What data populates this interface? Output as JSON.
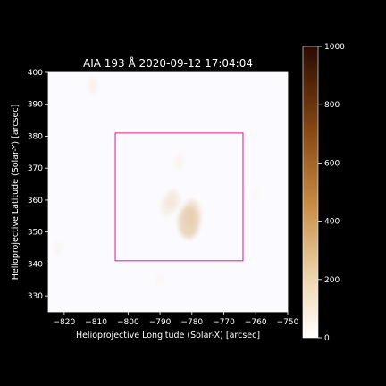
{
  "chart_data": {
    "type": "heatmap",
    "title": "AIA 193 Å 2020-09-12 17:04:04",
    "xlabel": "Helioprojective Longitude (Solar-X) [arcsec]",
    "ylabel": "Helioprojective Latitude (Solar-Y) [arcsec]",
    "xlim": [
      -825,
      -750
    ],
    "ylim": [
      325,
      400
    ],
    "x_ticks": [
      -820,
      -810,
      -800,
      -790,
      -780,
      -770,
      -760,
      -750
    ],
    "x_tick_labels": [
      "−820",
      "−810",
      "−800",
      "−790",
      "−780",
      "−770",
      "−760",
      "−750"
    ],
    "y_ticks": [
      330,
      340,
      350,
      360,
      370,
      380,
      390,
      400
    ],
    "y_tick_labels": [
      "330",
      "340",
      "350",
      "360",
      "370",
      "380",
      "390",
      "400"
    ],
    "colorbar": {
      "colormap": "sdoaia193",
      "range": [
        0,
        1000
      ],
      "ticks": [
        0,
        200,
        400,
        600,
        800,
        1000
      ],
      "tick_labels": [
        "0",
        "200",
        "400",
        "600",
        "800",
        "1000"
      ]
    },
    "roi_box": {
      "x0": -804,
      "x1": -764,
      "y0": 341,
      "y1": 381,
      "color": "#e0148c"
    },
    "features": [
      {
        "x": -788,
        "y": 358,
        "intensity": 90
      },
      {
        "x": -786,
        "y": 360,
        "intensity": 120
      },
      {
        "x": -781,
        "y": 353,
        "intensity": 260
      },
      {
        "x": -780,
        "y": 356,
        "intensity": 180
      },
      {
        "x": -784,
        "y": 372,
        "intensity": 60
      },
      {
        "x": -811,
        "y": 396,
        "intensity": 70
      },
      {
        "x": -822,
        "y": 345,
        "intensity": 50
      },
      {
        "x": -790,
        "y": 335,
        "intensity": 40
      },
      {
        "x": -760,
        "y": 362,
        "intensity": 35
      }
    ]
  }
}
